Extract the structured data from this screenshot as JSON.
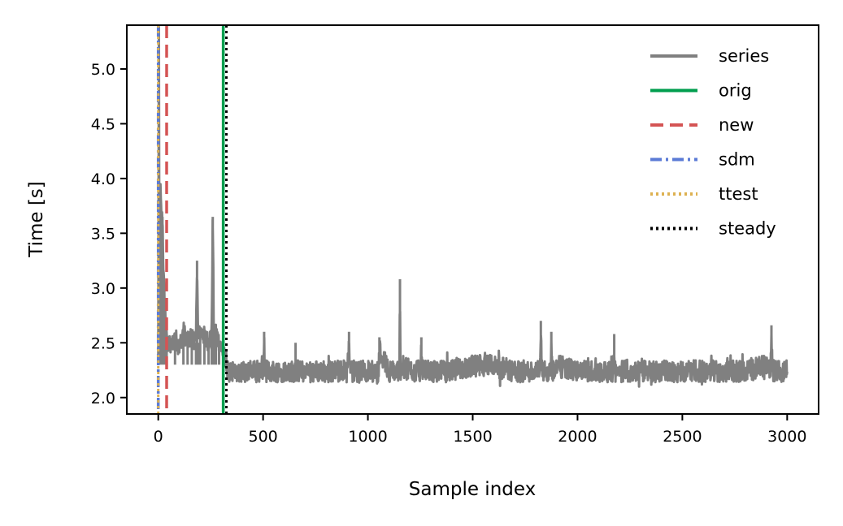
{
  "chart_data": {
    "type": "line",
    "title": "",
    "xlabel": "Sample index",
    "ylabel": "Time [s]",
    "xlim": [
      -150,
      3150
    ],
    "ylim": [
      1.85,
      5.4
    ],
    "xticks": [
      0,
      500,
      1000,
      1500,
      2000,
      2500,
      3000
    ],
    "yticks": [
      2.0,
      2.5,
      3.0,
      3.5,
      4.0,
      4.5,
      5.0
    ],
    "xtick_labels": [
      "0",
      "500",
      "1000",
      "1500",
      "2000",
      "2500",
      "3000"
    ],
    "ytick_labels": [
      "2.0",
      "2.5",
      "3.0",
      "3.5",
      "4.0",
      "4.5",
      "5.0"
    ],
    "grid": false,
    "legend_position": "top-right",
    "series": [
      {
        "name": "series",
        "color": "#808080",
        "style": "solid",
        "description_points": {
          "x": [
            0,
            3,
            6,
            10,
            15,
            20,
            25,
            30,
            40,
            60,
            80,
            100,
            120,
            140,
            160,
            180,
            185,
            190,
            200,
            220,
            240,
            255,
            260,
            265,
            275,
            290,
            300,
            310,
            320,
            330,
            350,
            400,
            450,
            500,
            505,
            510,
            600,
            650,
            655,
            660,
            700,
            705,
            710,
            800,
            850,
            900,
            910,
            915,
            920,
            1000,
            1050,
            1055,
            1100,
            1150,
            1153,
            1156,
            1160,
            1200,
            1250,
            1255,
            1260,
            1400,
            1500,
            1600,
            1700,
            1800,
            1820,
            1825,
            1830,
            1870,
            1875,
            1880,
            1900,
            2000,
            2100,
            2170,
            2175,
            2180,
            2300,
            2400,
            2500,
            2600,
            2700,
            2800,
            2900,
            2920,
            2925,
            2930,
            3000
          ],
          "y": [
            2.3,
            5.35,
            2.3,
            3.9,
            3.6,
            3.65,
            3.1,
            2.9,
            2.5,
            2.45,
            2.55,
            2.45,
            2.6,
            2.5,
            2.55,
            2.5,
            3.25,
            2.5,
            2.6,
            2.55,
            2.5,
            2.6,
            3.65,
            2.55,
            2.6,
            2.5,
            2.45,
            2.4,
            2.35,
            2.3,
            2.35,
            2.3,
            2.35,
            2.3,
            2.6,
            2.3,
            2.35,
            2.3,
            2.5,
            2.3,
            2.3,
            2.1,
            2.3,
            2.35,
            2.3,
            2.3,
            2.6,
            2.3,
            2.3,
            2.35,
            2.3,
            2.55,
            2.35,
            2.3,
            3.08,
            2.3,
            2.4,
            2.35,
            2.3,
            2.55,
            2.3,
            2.35,
            2.4,
            2.4,
            2.35,
            2.35,
            2.3,
            2.7,
            2.3,
            2.3,
            2.6,
            2.35,
            2.4,
            2.35,
            2.35,
            2.3,
            2.58,
            2.3,
            2.35,
            2.35,
            2.35,
            2.35,
            2.35,
            2.35,
            2.4,
            2.35,
            2.66,
            2.35,
            2.35
          ]
        }
      }
    ],
    "vlines": [
      {
        "name": "orig",
        "x": 310,
        "color": "#009E4E",
        "style": "solid"
      },
      {
        "name": "new",
        "x": 40,
        "color": "#D45454",
        "style": "dashed"
      },
      {
        "name": "sdm",
        "x": 0,
        "color": "#5B7BD6",
        "style": "dashdot"
      },
      {
        "name": "ttest",
        "x": 0,
        "color": "#DDB151",
        "style": "dotted"
      },
      {
        "name": "steady",
        "x": 325,
        "color": "#000000",
        "style": "dotted"
      }
    ],
    "legend": [
      "series",
      "orig",
      "new",
      "sdm",
      "ttest",
      "steady"
    ]
  }
}
